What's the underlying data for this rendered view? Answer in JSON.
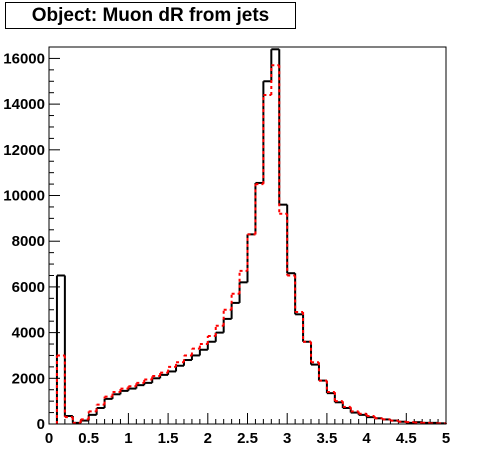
{
  "chart_data": {
    "type": "step-histogram",
    "title": "Object: Muon dR from jets",
    "xlim": [
      0,
      5
    ],
    "ylim": [
      0,
      16500
    ],
    "xticks": [
      "0",
      "0.5",
      "1",
      "1.5",
      "2",
      "2.5",
      "3",
      "3.5",
      "4",
      "4.5",
      "5"
    ],
    "yticks": [
      "0",
      "2000",
      "4000",
      "6000",
      "8000",
      "10000",
      "12000",
      "14000",
      "16000"
    ],
    "bin_width": 0.1,
    "bin_starts": [
      0.1,
      0.2,
      0.3,
      0.4,
      0.5,
      0.6,
      0.7,
      0.8,
      0.9,
      1.0,
      1.1,
      1.2,
      1.3,
      1.4,
      1.5,
      1.6,
      1.7,
      1.8,
      1.9,
      2.0,
      2.1,
      2.2,
      2.3,
      2.4,
      2.5,
      2.6,
      2.7,
      2.8,
      2.9,
      3.0,
      3.1,
      3.2,
      3.3,
      3.4,
      3.5,
      3.6,
      3.7,
      3.8,
      3.9,
      4.0,
      4.1,
      4.2,
      4.3,
      4.4,
      4.5,
      4.6,
      4.7,
      4.8,
      4.9
    ],
    "series": [
      {
        "style": "solid",
        "color": "#000000",
        "values": [
          6500,
          350,
          50,
          150,
          400,
          700,
          1100,
          1300,
          1450,
          1550,
          1700,
          1800,
          2000,
          2150,
          2300,
          2550,
          2800,
          3000,
          3250,
          3600,
          4000,
          4600,
          5300,
          6200,
          8300,
          10550,
          15000,
          16400,
          9600,
          6600,
          4800,
          3600,
          2600,
          1900,
          1350,
          950,
          700,
          500,
          400,
          300,
          250,
          200,
          150,
          100,
          50,
          80,
          50,
          50,
          30
        ]
      },
      {
        "style": "dashed",
        "color": "#ff0000",
        "values": [
          3000,
          300,
          50,
          200,
          550,
          850,
          1200,
          1400,
          1550,
          1650,
          1800,
          1950,
          2100,
          2250,
          2500,
          2700,
          3000,
          3300,
          3500,
          3850,
          4300,
          5000,
          5700,
          6700,
          8300,
          10500,
          14400,
          15700,
          9200,
          6500,
          4900,
          3600,
          2700,
          1900,
          1400,
          1000,
          750,
          550,
          450,
          350,
          250,
          200,
          150,
          100,
          80,
          60,
          50,
          30,
          30
        ]
      }
    ]
  }
}
